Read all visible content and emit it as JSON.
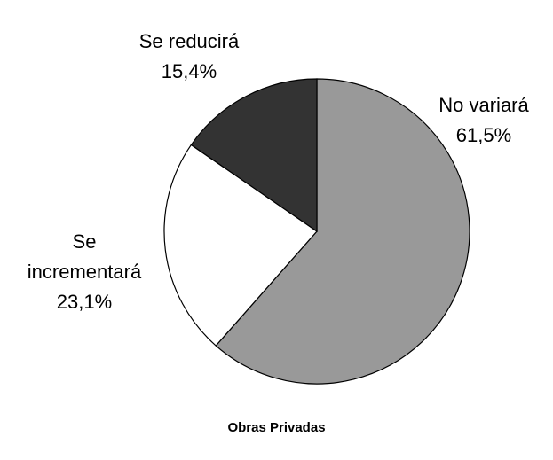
{
  "chart_data": {
    "type": "pie",
    "title": "Obras Privadas",
    "categories": [
      "No variará",
      "Se incrementará",
      "Se reducirá"
    ],
    "values": [
      61.5,
      23.1,
      15.4
    ],
    "value_labels": [
      "61,5%",
      "23,1%",
      "15,4%"
    ],
    "colors": [
      "#999999",
      "#ffffff",
      "#333333"
    ]
  }
}
